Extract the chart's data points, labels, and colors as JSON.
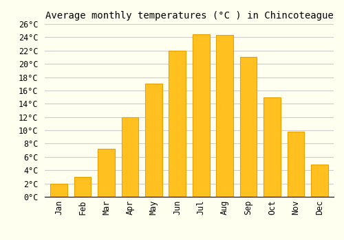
{
  "title": "Average monthly temperatures (°C ) in Chincoteague",
  "months": [
    "Jan",
    "Feb",
    "Mar",
    "Apr",
    "May",
    "Jun",
    "Jul",
    "Aug",
    "Sep",
    "Oct",
    "Nov",
    "Dec"
  ],
  "values": [
    2,
    3,
    7.2,
    12,
    17,
    22,
    24.5,
    24.3,
    21,
    15,
    9.8,
    4.8
  ],
  "bar_color": "#FFC020",
  "bar_edge_color": "#E8A000",
  "background_color": "#FFFFF0",
  "grid_color": "#CCCCCC",
  "ylim": [
    0,
    26
  ],
  "yticks": [
    0,
    2,
    4,
    6,
    8,
    10,
    12,
    14,
    16,
    18,
    20,
    22,
    24,
    26
  ],
  "title_fontsize": 10,
  "tick_fontsize": 8.5,
  "font_family": "monospace"
}
